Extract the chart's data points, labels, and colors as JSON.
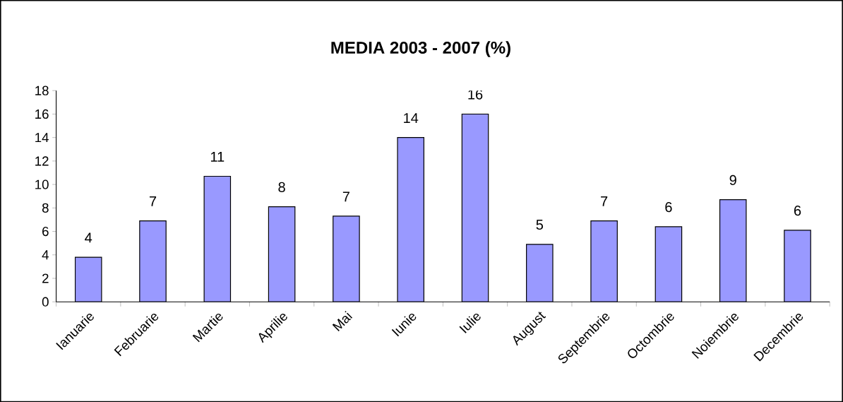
{
  "chart_data": {
    "type": "bar",
    "title": "MEDIA 2003 - 2007 (%)",
    "categories": [
      "Ianuarie",
      "Februarie",
      "Martie",
      "Aprilie",
      "Mai",
      "Iunie",
      "Iulie",
      "August",
      "Septembrie",
      "Octombrie",
      "Noiembrie",
      "Decembrie"
    ],
    "values": [
      3.8,
      6.9,
      10.7,
      8.1,
      7.3,
      14.0,
      16.0,
      4.9,
      6.9,
      6.4,
      8.7,
      6.1
    ],
    "value_labels": [
      "4",
      "7",
      "11",
      "8",
      "7",
      "14",
      "16",
      "5",
      "7",
      "6",
      "9",
      "6"
    ],
    "color": "#9999ff",
    "ylim": [
      0,
      18
    ],
    "yticks": [
      0,
      2,
      4,
      6,
      8,
      10,
      12,
      14,
      16,
      18
    ],
    "grid": false
  }
}
